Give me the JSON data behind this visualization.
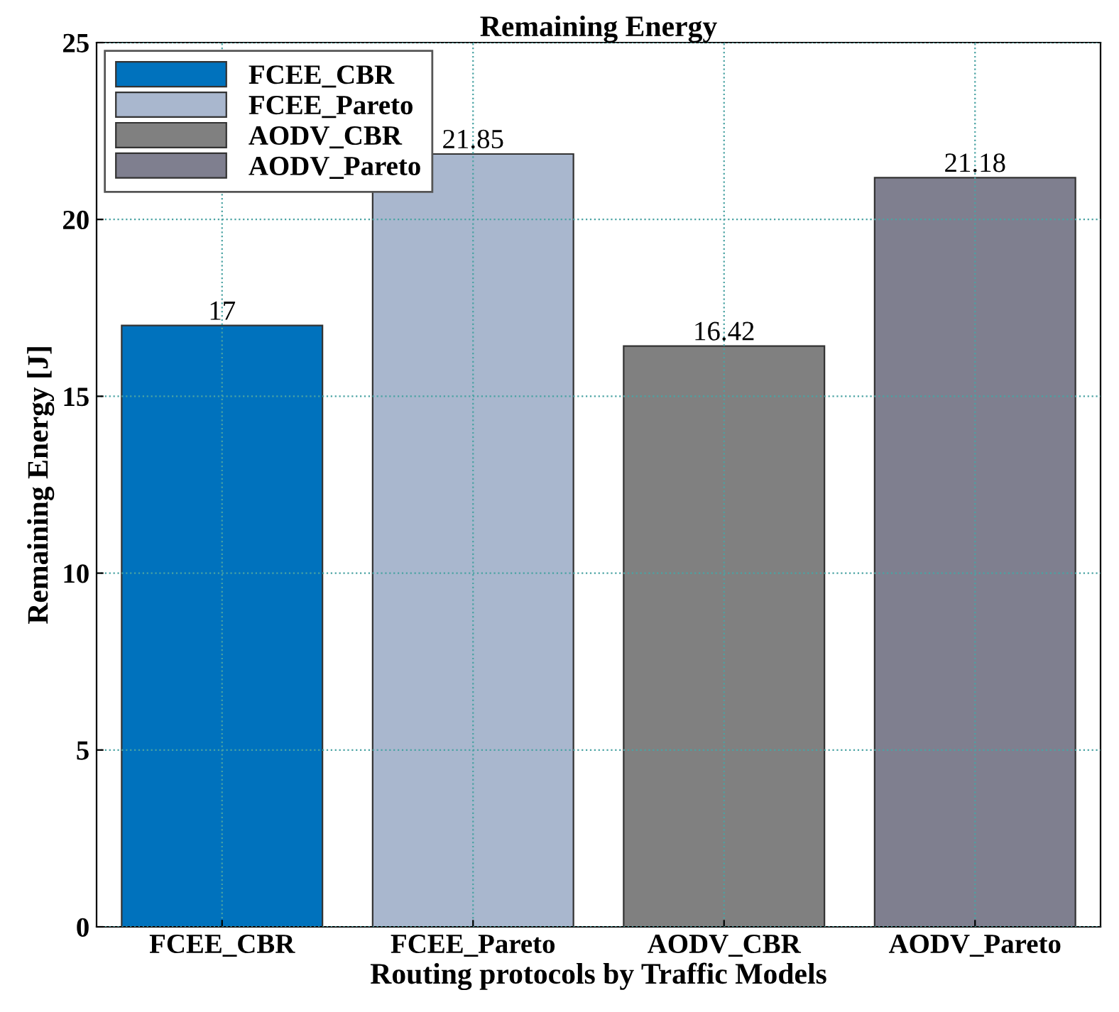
{
  "chart_data": {
    "type": "bar",
    "title": "Remaining Energy",
    "xlabel": "Routing protocols by Traffic Models",
    "ylabel": "Remaining Energy [J]",
    "categories": [
      "FCEE_CBR",
      "FCEE_Pareto",
      "AODV_CBR",
      "AODV_Pareto"
    ],
    "series": [
      {
        "name": "FCEE_CBR",
        "color": "#0072bd",
        "values": [
          17,
          null,
          null,
          null
        ]
      },
      {
        "name": "FCEE_Pareto",
        "color": "#a9b7ce",
        "values": [
          null,
          21.85,
          null,
          null
        ]
      },
      {
        "name": "AODV_CBR",
        "color": "#808080",
        "values": [
          null,
          null,
          16.42,
          null
        ]
      },
      {
        "name": "AODV_Pareto",
        "color": "#7f7f8f",
        "values": [
          null,
          null,
          null,
          21.18
        ]
      }
    ],
    "ylim": [
      0,
      25
    ],
    "yticks": [
      0,
      5,
      10,
      15,
      20,
      25
    ],
    "grid": true,
    "legend": "top left",
    "data_labels": true
  }
}
